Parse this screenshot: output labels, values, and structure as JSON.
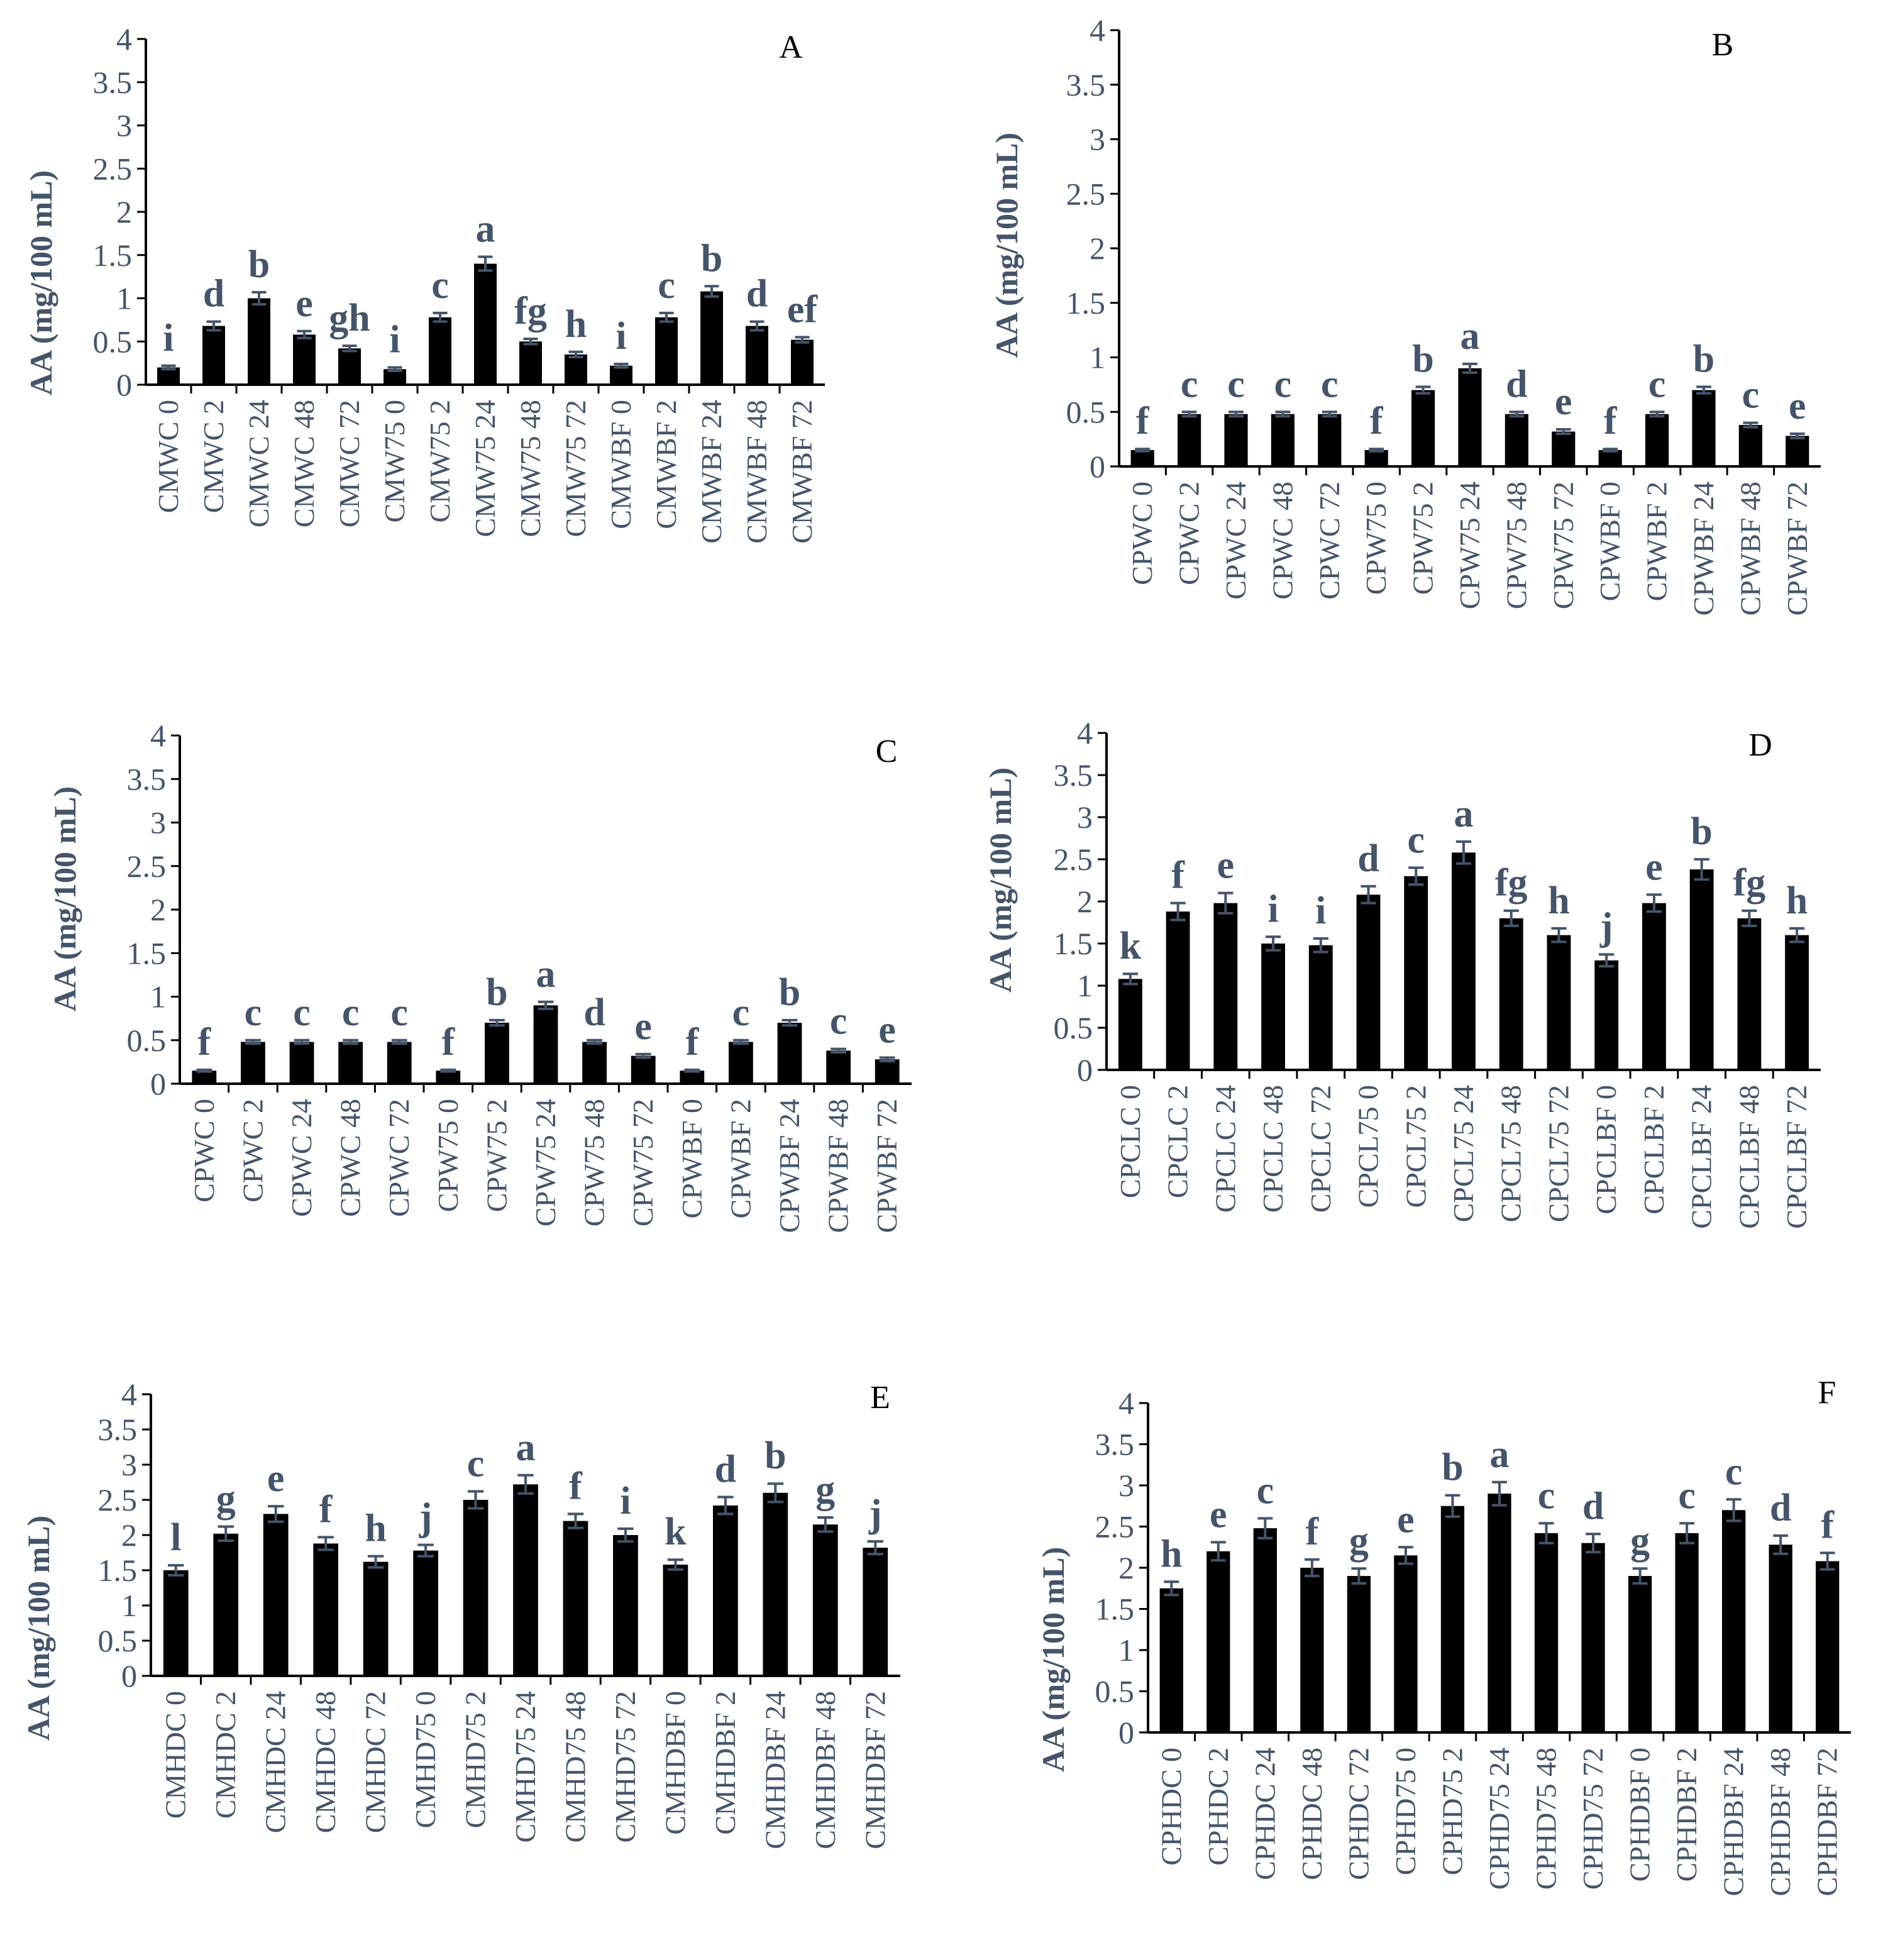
{
  "colors": {
    "bar": "#000000",
    "axis": "#000000",
    "error_bar": "#44546a",
    "text": "#44546a"
  },
  "chart_data": [
    {
      "type": "bar",
      "panel": "A",
      "ylabel": "AA (mg/100 mL)",
      "ylim": [
        0,
        4
      ],
      "yticks": [
        "0",
        "0.5",
        "1",
        "1.5",
        "2",
        "2.5",
        "3",
        "3.5",
        "4"
      ],
      "categories": [
        "CMWC 0",
        "CMWC 2",
        "CMWC 24",
        "CMWC 48",
        "CMWC 72",
        "CMW75 0",
        "CMW75 2",
        "CMW75 24",
        "CMW75 48",
        "CMW75 72",
        "CMWBF 0",
        "CMWBF 2",
        "CMWBF 24",
        "CMWBF 48",
        "CMWBF 72"
      ],
      "values": [
        0.2,
        0.68,
        1.0,
        0.58,
        0.42,
        0.18,
        0.78,
        1.4,
        0.5,
        0.35,
        0.22,
        0.78,
        1.08,
        0.68,
        0.52
      ],
      "errors": [
        0.02,
        0.05,
        0.07,
        0.04,
        0.03,
        0.02,
        0.05,
        0.08,
        0.03,
        0.03,
        0.02,
        0.05,
        0.06,
        0.05,
        0.03
      ],
      "letters": [
        "i",
        "d",
        "b",
        "e",
        "gh",
        "i",
        "c",
        "a",
        "fg",
        "h",
        "i",
        "c",
        "b",
        "d",
        "ef"
      ]
    },
    {
      "type": "bar",
      "panel": "B",
      "ylabel": "AA (mg/100 mL)",
      "ylim": [
        0,
        4
      ],
      "yticks": [
        "0",
        "0.5",
        "1",
        "1.5",
        "2",
        "2.5",
        "3",
        "3.5",
        "4"
      ],
      "categories": [
        "CPWC 0",
        "CPWC 2",
        "CPWC 24",
        "CPWC 48",
        "CPWC 72",
        "CPW75 0",
        "CPW75 2",
        "CPW75 24",
        "CPW75 48",
        "CPW75 72",
        "CPWBF 0",
        "CPWBF 2",
        "CPWBF 24",
        "CPWBF 48",
        "CPWBF 72"
      ],
      "values": [
        0.15,
        0.48,
        0.48,
        0.48,
        0.48,
        0.15,
        0.7,
        0.9,
        0.48,
        0.32,
        0.15,
        0.48,
        0.7,
        0.38,
        0.28
      ],
      "errors": [
        0.01,
        0.02,
        0.02,
        0.02,
        0.02,
        0.01,
        0.03,
        0.04,
        0.02,
        0.02,
        0.01,
        0.02,
        0.03,
        0.02,
        0.02
      ],
      "letters": [
        "f",
        "c",
        "c",
        "c",
        "c",
        "f",
        "b",
        "a",
        "d",
        "e",
        "f",
        "c",
        "b",
        "c",
        "e"
      ]
    },
    {
      "type": "bar",
      "panel": "C",
      "ylabel": "AA (mg/100 mL)",
      "ylim": [
        0,
        4
      ],
      "yticks": [
        "0",
        "0.5",
        "1",
        "1.5",
        "2",
        "2.5",
        "3",
        "3.5",
        "4"
      ],
      "categories": [
        "CPWC 0",
        "CPWC 2",
        "CPWC 24",
        "CPWC 48",
        "CPWC 72",
        "CPW75 0",
        "CPW75 2",
        "CPW75 24",
        "CPW75 48",
        "CPW75 72",
        "CPWBF 0",
        "CPWBF 2",
        "CPWBF 24",
        "CPWBF 48",
        "CPWBF 72"
      ],
      "values": [
        0.15,
        0.48,
        0.48,
        0.48,
        0.48,
        0.15,
        0.7,
        0.9,
        0.48,
        0.32,
        0.15,
        0.48,
        0.7,
        0.38,
        0.28
      ],
      "errors": [
        0.01,
        0.02,
        0.02,
        0.02,
        0.02,
        0.01,
        0.03,
        0.04,
        0.02,
        0.02,
        0.01,
        0.02,
        0.03,
        0.02,
        0.02
      ],
      "letters": [
        "f",
        "c",
        "c",
        "c",
        "c",
        "f",
        "b",
        "a",
        "d",
        "e",
        "f",
        "c",
        "b",
        "c",
        "e"
      ]
    },
    {
      "type": "bar",
      "panel": "D",
      "ylabel": "AA (mg/100 mL)",
      "ylim": [
        0,
        4
      ],
      "yticks": [
        "0",
        "0.5",
        "1",
        "1.5",
        "2",
        "2.5",
        "3",
        "3.5",
        "4"
      ],
      "categories": [
        "CPCLC 0",
        "CPCLC 2",
        "CPCLC 24",
        "CPCLC 48",
        "CPCLC 72",
        "CPCL75 0",
        "CPCL75 2",
        "CPCL75 24",
        "CPCL75 48",
        "CPCL75 72",
        "CPCLBF 0",
        "CPCLBF 2",
        "CPCLBF 24",
        "CPCLBF 48",
        "CPCLBF 72"
      ],
      "values": [
        1.08,
        1.88,
        1.98,
        1.5,
        1.48,
        2.08,
        2.3,
        2.58,
        1.8,
        1.6,
        1.3,
        1.98,
        2.38,
        1.8,
        1.6
      ],
      "errors": [
        0.06,
        0.1,
        0.12,
        0.08,
        0.08,
        0.1,
        0.1,
        0.13,
        0.09,
        0.08,
        0.07,
        0.1,
        0.12,
        0.09,
        0.08
      ],
      "letters": [
        "k",
        "f",
        "e",
        "i",
        "i",
        "d",
        "c",
        "a",
        "fg",
        "h",
        "j",
        "e",
        "b",
        "fg",
        "h"
      ]
    },
    {
      "type": "bar",
      "panel": "E",
      "ylabel": "AA (mg/100 mL)",
      "ylim": [
        0,
        4
      ],
      "yticks": [
        "0",
        "0.5",
        "1",
        "1.5",
        "2",
        "2.5",
        "3",
        "3.5",
        "4"
      ],
      "categories": [
        "CMHDC 0",
        "CMHDC 2",
        "CMHDC 24",
        "CMHDC 48",
        "CMHDC 72",
        "CMHD75 0",
        "CMHD75 2",
        "CMHD75 24",
        "CMHD75 48",
        "CMHD75 72",
        "CMHDBF 0",
        "CMHDBF 2",
        "CMHDBF 24",
        "CMHDBF 48",
        "CMHDBF 72"
      ],
      "values": [
        1.5,
        2.02,
        2.3,
        1.88,
        1.62,
        1.78,
        2.5,
        2.72,
        2.2,
        2.0,
        1.58,
        2.42,
        2.6,
        2.15,
        1.82
      ],
      "errors": [
        0.07,
        0.1,
        0.11,
        0.09,
        0.08,
        0.08,
        0.12,
        0.13,
        0.1,
        0.09,
        0.07,
        0.12,
        0.13,
        0.1,
        0.09
      ],
      "letters": [
        "l",
        "g",
        "e",
        "f",
        "h",
        "j",
        "c",
        "a",
        "f",
        "i",
        "k",
        "d",
        "b",
        "g",
        "j"
      ]
    },
    {
      "type": "bar",
      "panel": "F",
      "ylabel": "AA (mg/100 mL)",
      "ylim": [
        0,
        4
      ],
      "yticks": [
        "0",
        "0.5",
        "1",
        "1.5",
        "2",
        "2.5",
        "3",
        "3.5",
        "4"
      ],
      "categories": [
        "CPHDC 0",
        "CPHDC 2",
        "CPHDC 24",
        "CPHDC 48",
        "CPHDC 72",
        "CPHD75 0",
        "CPHD75 2",
        "CPHD75 24",
        "CPHD75 48",
        "CPHD75 72",
        "CPHDBF 0",
        "CPHDBF 2",
        "CPHDBF 24",
        "CPHDBF 48",
        "CPHDBF 72"
      ],
      "values": [
        1.75,
        2.2,
        2.48,
        2.0,
        1.9,
        2.15,
        2.75,
        2.9,
        2.42,
        2.3,
        1.9,
        2.42,
        2.7,
        2.28,
        2.08
      ],
      "errors": [
        0.08,
        0.11,
        0.12,
        0.1,
        0.09,
        0.1,
        0.13,
        0.14,
        0.12,
        0.11,
        0.09,
        0.12,
        0.13,
        0.11,
        0.1
      ],
      "letters": [
        "h",
        "e",
        "c",
        "f",
        "g",
        "e",
        "b",
        "a",
        "c",
        "d",
        "g",
        "c",
        "c",
        "d",
        "f"
      ]
    }
  ]
}
